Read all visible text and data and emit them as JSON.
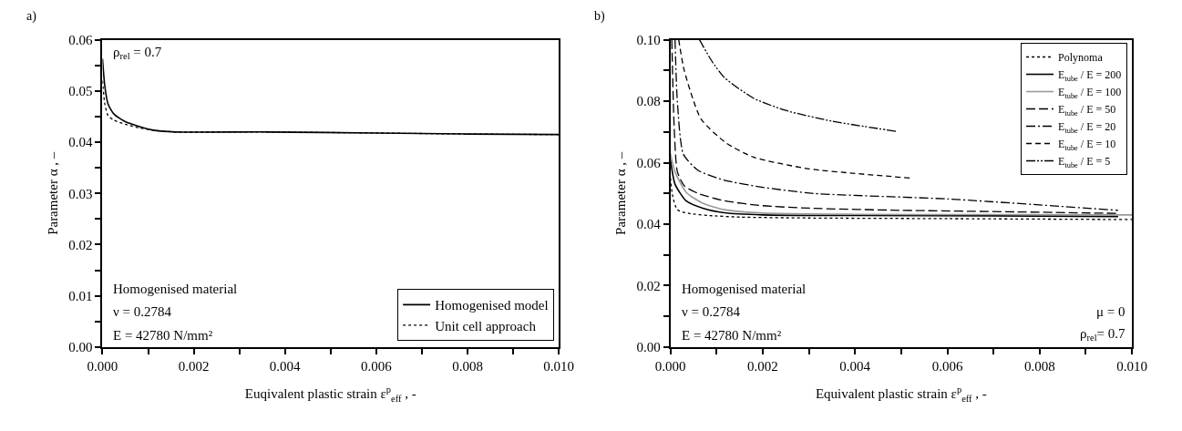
{
  "chart_data": [
    {
      "type": "line",
      "xlabel": "Euqivalent plastic strain ε$^{p}$$_{eff}$ , -",
      "ylabel": "Parameter α , –",
      "xlim": [
        0,
        0.01
      ],
      "ylim": [
        0,
        0.06
      ],
      "xticks": [
        {
          "value": 0,
          "label": "0.000"
        },
        {
          "value": 0.001,
          "label": null
        },
        {
          "value": 0.002,
          "label": "0.002"
        },
        {
          "value": 0.003,
          "label": null
        },
        {
          "value": 0.004,
          "label": "0.004"
        },
        {
          "value": 0.005,
          "label": null
        },
        {
          "value": 0.006,
          "label": "0.006"
        },
        {
          "value": 0.007,
          "label": null
        },
        {
          "value": 0.008,
          "label": "0.008"
        },
        {
          "value": 0.009,
          "label": null
        },
        {
          "value": 0.01,
          "label": "0.010"
        }
      ],
      "yticks": [
        {
          "value": 0,
          "label": "0.00"
        },
        {
          "value": 0.005,
          "label": null
        },
        {
          "value": 0.01,
          "label": "0.01"
        },
        {
          "value": 0.015,
          "label": null
        },
        {
          "value": 0.02,
          "label": "0.02"
        },
        {
          "value": 0.025,
          "label": null
        },
        {
          "value": 0.03,
          "label": "0.03"
        },
        {
          "value": 0.035,
          "label": null
        },
        {
          "value": 0.04,
          "label": "0.04"
        },
        {
          "value": 0.045,
          "label": null
        },
        {
          "value": 0.05,
          "label": "0.05"
        },
        {
          "value": 0.055,
          "label": null
        },
        {
          "value": 0.06,
          "label": "0.06"
        }
      ],
      "legend": "bottom right",
      "marker": "none",
      "series": [
        {
          "name": "Homogenised model",
          "color": "#000000",
          "line_style": "solid",
          "x": [
            0,
            5e-05,
            0.00012,
            0.00025,
            0.0005,
            0.0008,
            0.00115,
            0.0016,
            0.0036,
            0.006,
            0.008,
            0.01
          ],
          "values": [
            0.0563,
            0.051,
            0.0475,
            0.0455,
            0.044,
            0.0431,
            0.0423,
            0.042,
            0.042,
            0.0418,
            0.0416,
            0.0415
          ]
        },
        {
          "name": "Unit cell approach",
          "color": "#000000",
          "line_style": "dotted",
          "x": [
            0,
            5e-05,
            0.00012,
            0.00025,
            0.0005,
            0.0008,
            0.00115,
            0.0016,
            0.0036,
            0.006,
            0.008,
            0.01
          ],
          "values": [
            0.052,
            0.0475,
            0.0452,
            0.0443,
            0.0435,
            0.0428,
            0.0423,
            0.042,
            0.042,
            0.0418,
            0.0416,
            0.0415
          ]
        }
      ],
      "annotations": [
        "a)",
        "ρ$_{rel}$ = 0.7",
        "Homogenised material",
        "ν = 0.2784",
        "E = 42780 N/mm²"
      ]
    },
    {
      "type": "line",
      "xlabel": "Equivalent plastic strain ε$^{p}$$_{eff}$ , -",
      "ylabel": "Parameter α , –",
      "xlim": [
        0,
        0.01
      ],
      "ylim": [
        0,
        0.1
      ],
      "xticks": [
        {
          "value": 0,
          "label": "0.000"
        },
        {
          "value": 0.001,
          "label": null
        },
        {
          "value": 0.002,
          "label": "0.002"
        },
        {
          "value": 0.003,
          "label": null
        },
        {
          "value": 0.004,
          "label": "0.004"
        },
        {
          "value": 0.005,
          "label": null
        },
        {
          "value": 0.006,
          "label": "0.006"
        },
        {
          "value": 0.007,
          "label": null
        },
        {
          "value": 0.008,
          "label": "0.008"
        },
        {
          "value": 0.009,
          "label": null
        },
        {
          "value": 0.01,
          "label": "0.010"
        }
      ],
      "yticks": [
        {
          "value": 0,
          "label": "0.00"
        },
        {
          "value": 0.01,
          "label": null
        },
        {
          "value": 0.02,
          "label": "0.02"
        },
        {
          "value": 0.03,
          "label": null
        },
        {
          "value": 0.04,
          "label": "0.04"
        },
        {
          "value": 0.05,
          "label": null
        },
        {
          "value": 0.06,
          "label": "0.06"
        },
        {
          "value": 0.07,
          "label": null
        },
        {
          "value": 0.08,
          "label": "0.08"
        },
        {
          "value": 0.09,
          "label": null
        },
        {
          "value": 0.1,
          "label": "0.10"
        }
      ],
      "legend": "top right",
      "marker": "none",
      "series": [
        {
          "name": "Polynoma",
          "color": "#000000",
          "line_style": "dotted",
          "x": [
            0,
            5e-05,
            0.00015,
            0.0004,
            0.00085,
            0.0015,
            0.003,
            0.006,
            0.01
          ],
          "values": [
            0.055,
            0.049,
            0.0447,
            0.0435,
            0.0428,
            0.0423,
            0.042,
            0.0418,
            0.0415
          ]
        },
        {
          "name": "E$_{tube}$ / E = 200",
          "color": "#000000",
          "line_style": "solid",
          "x": [
            0,
            0.0001,
            0.00034,
            0.0007,
            0.00117,
            0.002,
            0.004,
            0.007,
            0.0097
          ],
          "values": [
            0.061,
            0.053,
            0.0476,
            0.0452,
            0.0437,
            0.043,
            0.0428,
            0.0427,
            0.0425
          ]
        },
        {
          "name": "E$_{tube}$ / E = 100",
          "color": "#999999",
          "line_style": "solid",
          "x": [
            0,
            0.0001,
            0.00034,
            0.0007,
            0.00117,
            0.002,
            0.004,
            0.007,
            0.01
          ],
          "values": [
            0.063,
            0.057,
            0.0504,
            0.0468,
            0.0447,
            0.0436,
            0.0432,
            0.0431,
            0.043
          ]
        },
        {
          "name": "E$_{tube}$ / E = 50",
          "color": "#000000",
          "line_style": "longdash",
          "x": [
            3e-05,
            8e-05,
            0.00015,
            0.0003,
            0.0006,
            0.00117,
            0.002,
            0.003,
            0.005,
            0.0075,
            0.0097
          ],
          "values": [
            0.1,
            0.072,
            0.0571,
            0.0525,
            0.05,
            0.0476,
            0.046,
            0.0452,
            0.0445,
            0.044,
            0.0435
          ]
        },
        {
          "name": "E$_{tube}$ / E = 20",
          "color": "#000000",
          "line_style": "dashdot",
          "x": [
            0.0001,
            0.00015,
            0.00028,
            0.0006,
            0.00117,
            0.002,
            0.0031,
            0.006,
            0.0097
          ],
          "values": [
            0.1,
            0.08,
            0.0628,
            0.0575,
            0.0543,
            0.052,
            0.05,
            0.0482,
            0.0445
          ]
        },
        {
          "name": "E$_{tube}$ / E = 10",
          "color": "#000000",
          "line_style": "dashed",
          "x": [
            0.00018,
            0.0003,
            0.00066,
            0.0012,
            0.0018,
            0.003,
            0.004,
            0.0052
          ],
          "values": [
            0.1,
            0.09,
            0.0743,
            0.0665,
            0.0618,
            0.058,
            0.0565,
            0.055
          ]
        },
        {
          "name": "E$_{tube}$ / E = 5",
          "color": "#000000",
          "line_style": "dashdotdot",
          "x": [
            0.00063,
            0.0009,
            0.00117,
            0.0018,
            0.0025,
            0.0035,
            0.0042,
            0.0049
          ],
          "values": [
            0.1,
            0.093,
            0.0877,
            0.081,
            0.077,
            0.0735,
            0.0718,
            0.0702
          ]
        }
      ],
      "annotations": [
        "b)",
        "Homogenised material",
        "ν = 0.2784",
        "E = 42780 N/mm²",
        "μ = 0",
        "ρ$_{rel}$= 0.7"
      ]
    }
  ]
}
